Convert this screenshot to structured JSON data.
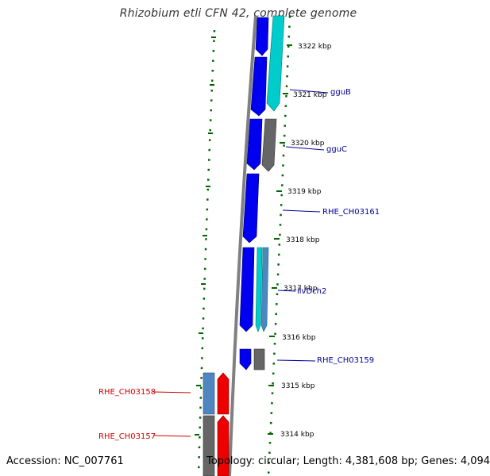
{
  "header": {
    "title": "Rhizobium etli CFN 42, complete genome"
  },
  "footer": {
    "accession": "Accession: NC_007761",
    "summary": "Topology: circular; Length: 4,381,608 bp; Genes: 4,094"
  },
  "colors": {
    "forward_cds": "#0000ee",
    "forward_gene": "#00cccc",
    "forward_other": "#666666",
    "reverse_cds": "#ee0000",
    "reverse_gene": "#4f86c0",
    "reverse_other": "#666666",
    "backbone": "#888888",
    "tick_marks": "#006600",
    "label_forward": "#000099",
    "label_reverse": "#cc0000"
  },
  "scale_ticks": [
    "3322 kbp",
    "3321 kbp",
    "3320 kbp",
    "3319 kbp",
    "3318 kbp",
    "3317 kbp",
    "3316 kbp",
    "3315 kbp",
    "3314 kbp"
  ],
  "gene_labels": [
    {
      "text": "gguB",
      "strand": "forward"
    },
    {
      "text": "gguC",
      "strand": "forward"
    },
    {
      "text": "RHE_CH03161",
      "strand": "forward"
    },
    {
      "text": "ilvDch2",
      "strand": "forward"
    },
    {
      "text": "RHE_CH03159",
      "strand": "forward"
    },
    {
      "text": "RHE_CH03158",
      "strand": "reverse"
    },
    {
      "text": "RHE_CH03157",
      "strand": "reverse"
    }
  ]
}
